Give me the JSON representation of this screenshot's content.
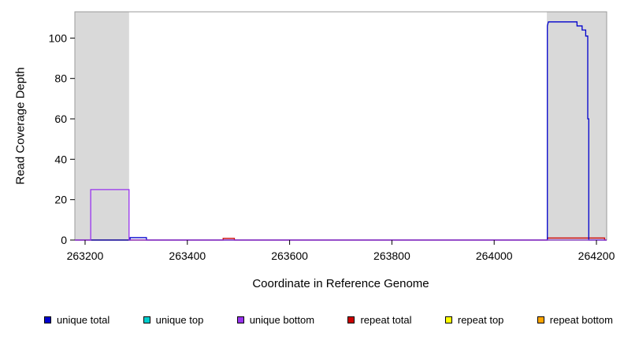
{
  "chart_data": {
    "type": "line",
    "title": "",
    "xlabel": "Coordinate in Reference Genome",
    "ylabel": "Read Coverage Depth",
    "xlim": [
      263180,
      264220
    ],
    "ylim": [
      0,
      113
    ],
    "xticks": [
      263200,
      263400,
      263600,
      263800,
      264000,
      264200
    ],
    "yticks": [
      0,
      20,
      40,
      60,
      80,
      100
    ],
    "grid": false,
    "box_color": "#9a9a9a",
    "shaded_region_color": "#d9d9d9",
    "shaded_regions": [
      {
        "x0": 263180,
        "x1": 263286,
        "color": "#d9d9d9"
      },
      {
        "x0": 264103,
        "x1": 264220,
        "color": "#d9d9d9"
      }
    ],
    "series": [
      {
        "name": "repeat top",
        "color": "#FFFF00",
        "points": [
          [
            263180,
            0
          ],
          [
            264220,
            0
          ]
        ]
      },
      {
        "name": "repeat bottom",
        "color": "#FFA500",
        "points": [
          [
            263180,
            0
          ],
          [
            264220,
            0
          ]
        ]
      },
      {
        "name": "unique top",
        "color": "#00CDCD",
        "points": [
          [
            263180,
            0
          ],
          [
            264220,
            0
          ]
        ]
      },
      {
        "name": "repeat total",
        "color": "#CC0000",
        "points": [
          [
            263180,
            0
          ],
          [
            263470,
            0
          ],
          [
            263470,
            0.8
          ],
          [
            263492,
            0.8
          ],
          [
            263492,
            0
          ],
          [
            264104,
            0
          ],
          [
            264104,
            1
          ],
          [
            264216,
            1
          ],
          [
            264216,
            0
          ],
          [
            264220,
            0
          ]
        ]
      },
      {
        "name": "unique total",
        "color": "#0000CD",
        "points": [
          [
            263180,
            0
          ],
          [
            263288,
            0
          ],
          [
            263288,
            1.2
          ],
          [
            263320,
            1.2
          ],
          [
            263320,
            0
          ],
          [
            264104,
            0
          ],
          [
            264104,
            106
          ],
          [
            264106,
            108
          ],
          [
            264162,
            108
          ],
          [
            264162,
            106
          ],
          [
            264172,
            106
          ],
          [
            264172,
            104
          ],
          [
            264179,
            104
          ],
          [
            264179,
            101
          ],
          [
            264183,
            101
          ],
          [
            264183,
            60
          ],
          [
            264185,
            60
          ],
          [
            264185,
            0
          ],
          [
            264220,
            0
          ]
        ]
      },
      {
        "name": "unique bottom",
        "color": "#9933EE",
        "points": [
          [
            263180,
            0
          ],
          [
            263211,
            0
          ],
          [
            263211,
            25
          ],
          [
            263286,
            25
          ],
          [
            263286,
            0
          ],
          [
            264220,
            0
          ]
        ]
      }
    ],
    "legend": {
      "position": "bottom",
      "items": [
        {
          "label": "unique total",
          "color": "#0000CD"
        },
        {
          "label": "unique top",
          "color": "#00CDCD"
        },
        {
          "label": "unique bottom",
          "color": "#9933EE"
        },
        {
          "label": "repeat total",
          "color": "#CC0000"
        },
        {
          "label": "repeat top",
          "color": "#FFFF00"
        },
        {
          "label": "repeat bottom",
          "color": "#FFA500"
        }
      ]
    }
  }
}
